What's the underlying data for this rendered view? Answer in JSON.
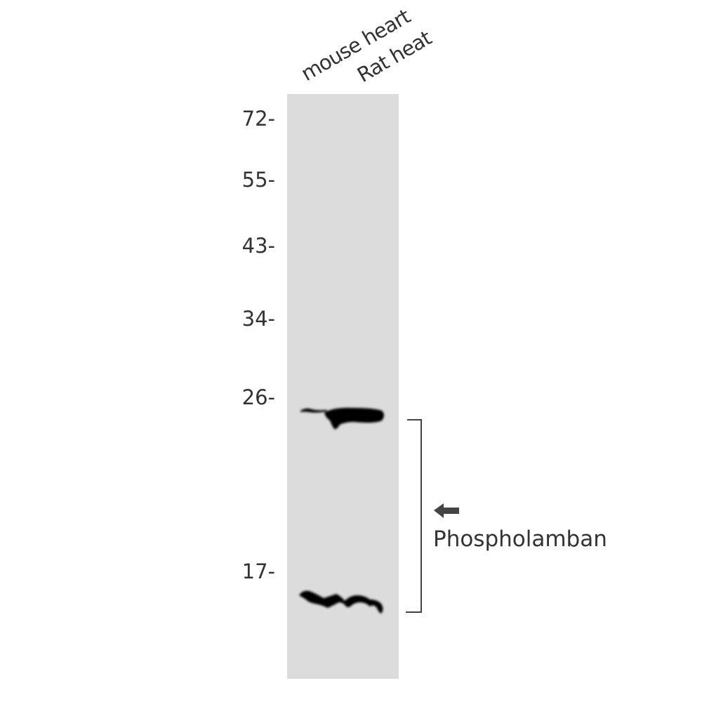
{
  "lanes": [
    "mouse heart",
    "Rat heat"
  ],
  "markers": [
    {
      "label": "72-",
      "kda": 72
    },
    {
      "label": "55-",
      "kda": 55
    },
    {
      "label": "43-",
      "kda": 43
    },
    {
      "label": "34-",
      "kda": 34
    },
    {
      "label": "26-",
      "kda": 26
    },
    {
      "label": "17-",
      "kda": 17
    }
  ],
  "target": {
    "label": "Phospholamban",
    "icon": "arrow-left-icon"
  },
  "colors": {
    "membrane": "#dcdcdc",
    "band": "#000000",
    "text": "#333333"
  }
}
